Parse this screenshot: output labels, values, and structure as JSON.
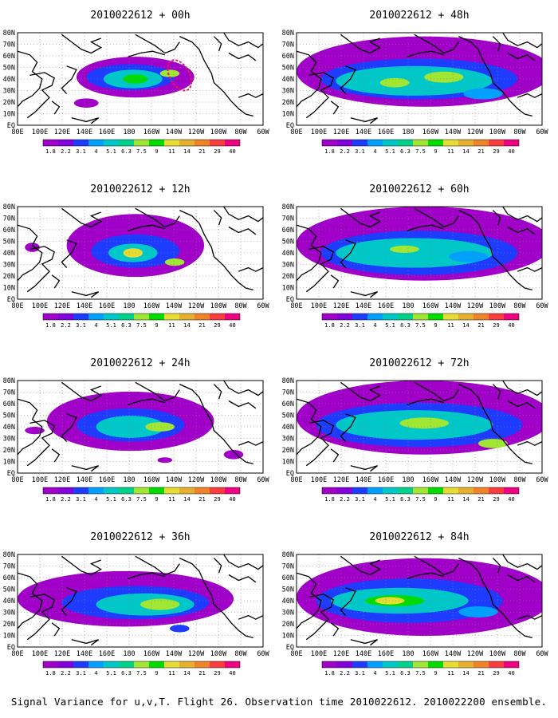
{
  "caption": "Signal Variance for u,v,T. Flight 26. Observation time 2010022612. 2010022200 ensemble.",
  "lat_labels": [
    "80N",
    "70N",
    "60N",
    "50N",
    "40N",
    "30N",
    "20N",
    "10N",
    "EQ"
  ],
  "lon_labels": [
    "80E",
    "100E",
    "120E",
    "140E",
    "160E",
    "180",
    "160W",
    "140W",
    "120W",
    "100W",
    "80W",
    "60W"
  ],
  "legend": {
    "values": [
      "1.8",
      "2.2",
      "3.1",
      "4",
      "5.1",
      "6.3",
      "7.5",
      "9",
      "11",
      "14",
      "21",
      "29",
      "40"
    ],
    "colors": [
      "#a000c8",
      "#8200dc",
      "#1e3cff",
      "#00a0ff",
      "#00c8c8",
      "#00d28c",
      "#a0e632",
      "#00dc00",
      "#e6dc32",
      "#e6af2d",
      "#f08228",
      "#fa3c3c",
      "#f00082"
    ]
  },
  "colors": {
    "land_outline": "#000000",
    "grid": "#808080",
    "observation_track": "#e6195a"
  },
  "panels": [
    {
      "title": "2010022612 + 00h"
    },
    {
      "title": "2010022612 + 48h"
    },
    {
      "title": "2010022612 + 12h"
    },
    {
      "title": "2010022612 + 60h"
    },
    {
      "title": "2010022612 + 24h"
    },
    {
      "title": "2010022612 + 72h"
    },
    {
      "title": "2010022612 + 36h"
    },
    {
      "title": "2010022612 + 84h"
    }
  ]
}
